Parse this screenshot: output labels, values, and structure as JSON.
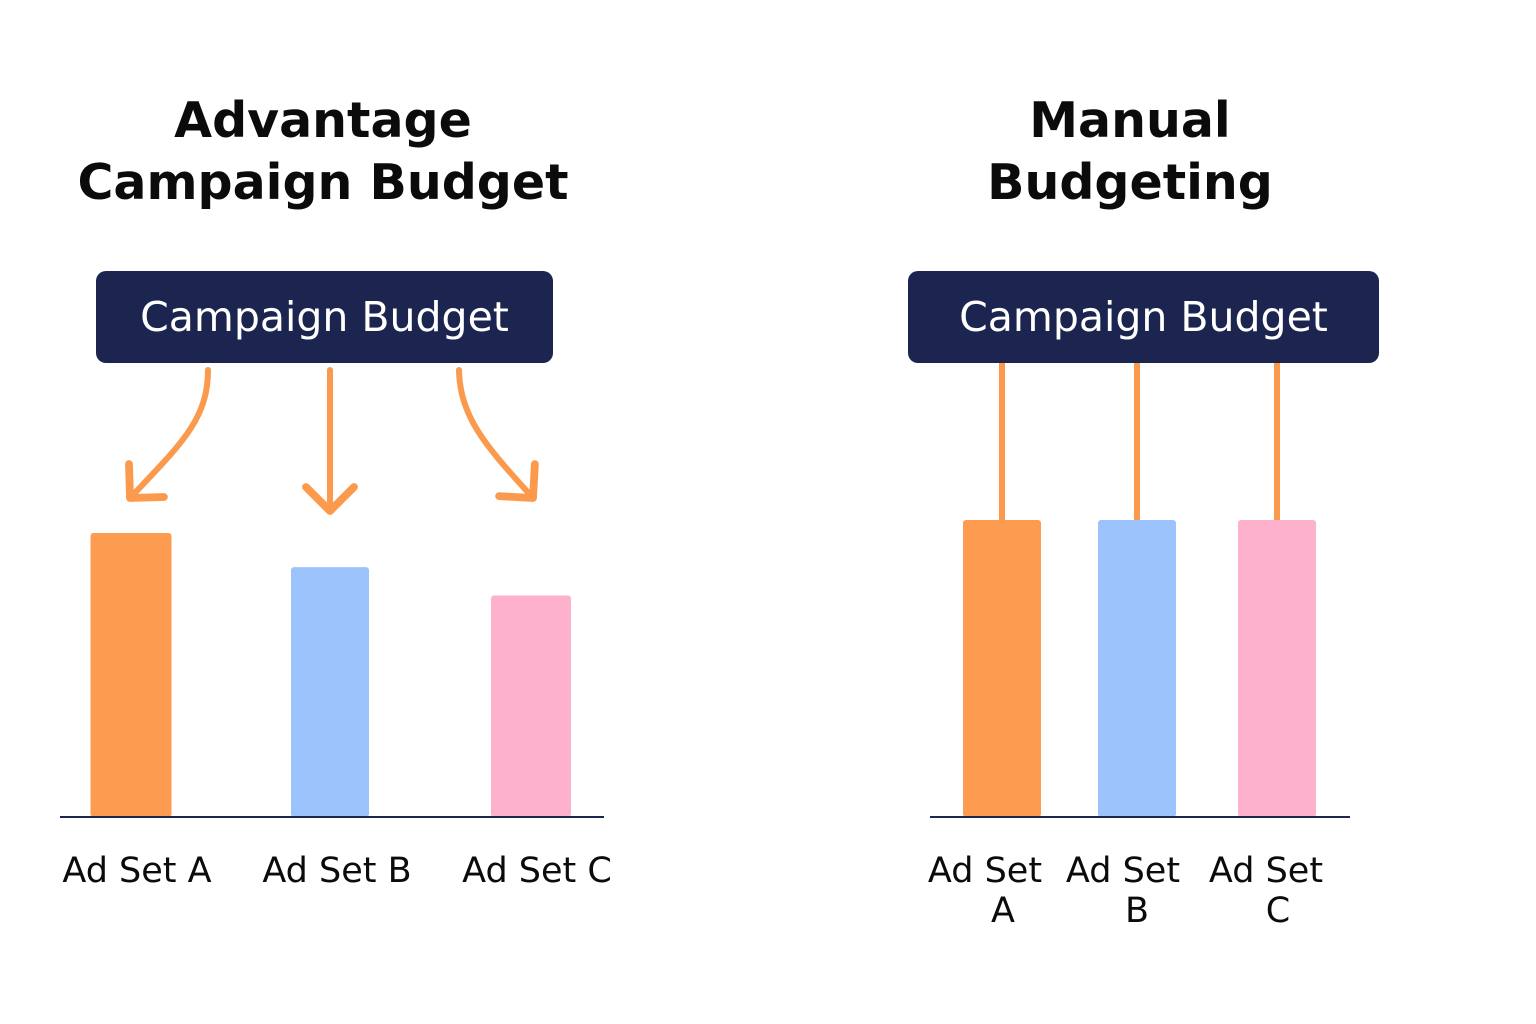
{
  "colors": {
    "navy": "#1c2550",
    "arrow": "#fb9a4c",
    "ad_set_a": "#fd9b50",
    "ad_set_b": "#9dc3fd",
    "ad_set_c": "#feb1cd"
  },
  "chart_data": [
    {
      "type": "bar",
      "title": "Advantage Campaign Budget",
      "title_lines": [
        "Advantage",
        "Campaign Budget"
      ],
      "source_label": "Campaign Budget",
      "connector": "curved-arrows",
      "categories": [
        "Ad Set A",
        "Ad Set B",
        "Ad Set C"
      ],
      "category_lines": [
        [
          "Ad Set A"
        ],
        [
          "Ad Set B"
        ],
        [
          "Ad Set C"
        ]
      ],
      "values": [
        100,
        88,
        78
      ],
      "ylim": [
        0,
        100
      ],
      "xlabel": "",
      "ylabel": "",
      "grid": false,
      "y_axis_shown": false
    },
    {
      "type": "bar",
      "title": "Manual Budgeting",
      "title_lines": [
        "Manual",
        "Budgeting"
      ],
      "source_label": "Campaign Budget",
      "connector": "straight-lines",
      "categories": [
        "Ad Set A",
        "Ad Set B",
        "Ad Set C"
      ],
      "category_lines": [
        [
          "Ad Set",
          "A"
        ],
        [
          "Ad Set",
          "B"
        ],
        [
          "Ad Set",
          "C"
        ]
      ],
      "values": [
        100,
        100,
        100
      ],
      "ylim": [
        0,
        100
      ],
      "xlabel": "",
      "ylabel": "",
      "grid": false,
      "y_axis_shown": false
    }
  ]
}
